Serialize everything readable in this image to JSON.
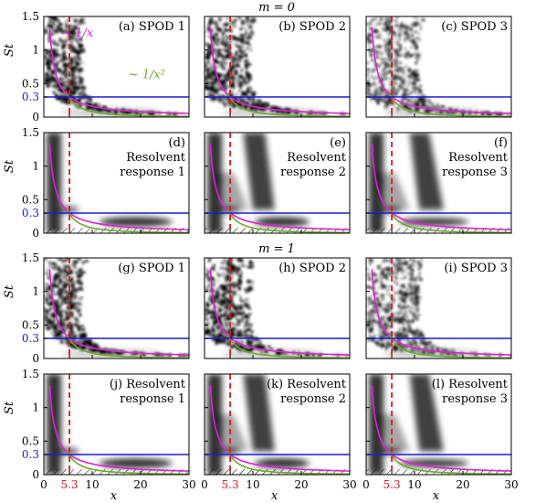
{
  "figure": {
    "section_labels": [
      "m = 0",
      "m = 1"
    ],
    "y_axis_label": "St",
    "x_axis_label": "x",
    "colors": {
      "inverse": "#e020d8",
      "inverse_sq": "#6aaa2a",
      "threshold": "#1a1adc",
      "x_marker": "#e01818",
      "frame": "#000000"
    },
    "annotations": {
      "inverse_text": "~ 1/x",
      "inverse_sq_text": "~ 1/x²"
    }
  },
  "chart_data": [
    {
      "type": "heatmap",
      "label": "(a) SPOD 1",
      "label_lines": [
        "(a) SPOD 1"
      ],
      "xlabel": "",
      "ylabel": "St",
      "xlim": [
        0,
        30
      ],
      "ylim": [
        0,
        1.5
      ],
      "x_ticks": [],
      "y_ticks": [
        "0",
        "0.3",
        "0.5",
        "1",
        "1.5"
      ],
      "threshold_st": 0.3,
      "marker_x": 5.3,
      "hatch": false,
      "annotations": [
        "~ 1/x",
        "~ 1/x²"
      ]
    },
    {
      "type": "heatmap",
      "label": "(b) SPOD 2",
      "label_lines": [
        "(b) SPOD 2"
      ],
      "xlabel": "",
      "ylabel": "",
      "xlim": [
        0,
        30
      ],
      "ylim": [
        0,
        1.5
      ],
      "x_ticks": [],
      "y_ticks": [],
      "threshold_st": 0.3,
      "marker_x": 5.3,
      "hatch": false
    },
    {
      "type": "heatmap",
      "label": "(c) SPOD 3",
      "label_lines": [
        "(c) SPOD 3"
      ],
      "xlabel": "",
      "ylabel": "",
      "xlim": [
        0,
        30
      ],
      "ylim": [
        0,
        1.5
      ],
      "x_ticks": [],
      "y_ticks": [],
      "threshold_st": 0.3,
      "marker_x": 5.3,
      "hatch": false
    },
    {
      "type": "heatmap",
      "label": "(d) Resolvent response 1",
      "label_lines": [
        "(d)",
        "Resolvent",
        "response 1"
      ],
      "xlabel": "",
      "ylabel": "St",
      "xlim": [
        0,
        30
      ],
      "ylim": [
        0,
        1.5
      ],
      "x_ticks": [],
      "y_ticks": [
        "0",
        "0.3",
        "0.5",
        "1",
        "1.5"
      ],
      "threshold_st": 0.3,
      "marker_x": 5.3,
      "hatch": true
    },
    {
      "type": "heatmap",
      "label": "(e) Resolvent response 2",
      "label_lines": [
        "(e)",
        "Resolvent",
        "response 2"
      ],
      "xlabel": "",
      "ylabel": "",
      "xlim": [
        0,
        30
      ],
      "ylim": [
        0,
        1.5
      ],
      "x_ticks": [],
      "y_ticks": [],
      "threshold_st": 0.3,
      "marker_x": 5.3,
      "hatch": true
    },
    {
      "type": "heatmap",
      "label": "(f) Resolvent response 3",
      "label_lines": [
        "(f)",
        "Resolvent",
        "response 3"
      ],
      "xlabel": "",
      "ylabel": "",
      "xlim": [
        0,
        30
      ],
      "ylim": [
        0,
        1.5
      ],
      "x_ticks": [],
      "y_ticks": [],
      "threshold_st": 0.3,
      "marker_x": 5.3,
      "hatch": true
    },
    {
      "type": "heatmap",
      "label": "(g) SPOD 1",
      "label_lines": [
        "(g) SPOD 1"
      ],
      "xlabel": "",
      "ylabel": "St",
      "xlim": [
        0,
        30
      ],
      "ylim": [
        0,
        1.5
      ],
      "x_ticks": [],
      "y_ticks": [
        "0",
        "0.3",
        "0.5",
        "1",
        "1.5"
      ],
      "threshold_st": 0.3,
      "marker_x": 5.3,
      "hatch": false
    },
    {
      "type": "heatmap",
      "label": "(h) SPOD 2",
      "label_lines": [
        "(h) SPOD 2"
      ],
      "xlabel": "",
      "ylabel": "",
      "xlim": [
        0,
        30
      ],
      "ylim": [
        0,
        1.5
      ],
      "x_ticks": [],
      "y_ticks": [],
      "threshold_st": 0.3,
      "marker_x": 5.3,
      "hatch": false
    },
    {
      "type": "heatmap",
      "label": "(i) SPOD 3",
      "label_lines": [
        "(i) SPOD 3"
      ],
      "xlabel": "",
      "ylabel": "",
      "xlim": [
        0,
        30
      ],
      "ylim": [
        0,
        1.5
      ],
      "x_ticks": [],
      "y_ticks": [],
      "threshold_st": 0.3,
      "marker_x": 5.3,
      "hatch": false
    },
    {
      "type": "heatmap",
      "label": "(j) Resolvent response 1",
      "label_lines": [
        "(j) Resolvent",
        "response 1"
      ],
      "xlabel": "x",
      "ylabel": "St",
      "xlim": [
        0,
        30
      ],
      "ylim": [
        0,
        1.5
      ],
      "x_ticks": [
        "0",
        "5.3",
        "10",
        "20",
        "30"
      ],
      "y_ticks": [
        "0",
        "0.3",
        "0.5",
        "1",
        "1.5"
      ],
      "threshold_st": 0.3,
      "marker_x": 5.3,
      "hatch": true
    },
    {
      "type": "heatmap",
      "label": "(k) Resolvent response 2",
      "label_lines": [
        "(k) Resolvent",
        "response 2"
      ],
      "xlabel": "x",
      "ylabel": "",
      "xlim": [
        0,
        30
      ],
      "ylim": [
        0,
        1.5
      ],
      "x_ticks": [
        "0",
        "5.3",
        "10",
        "20",
        "30"
      ],
      "y_ticks": [],
      "threshold_st": 0.3,
      "marker_x": 5.3,
      "hatch": true
    },
    {
      "type": "heatmap",
      "label": "(l) Resolvent response 3",
      "label_lines": [
        "(l) Resolvent",
        "response 3"
      ],
      "xlabel": "x",
      "ylabel": "",
      "xlim": [
        0,
        30
      ],
      "ylim": [
        0,
        1.5
      ],
      "x_ticks": [
        "0",
        "5.3",
        "10",
        "20",
        "30"
      ],
      "y_ticks": [],
      "threshold_st": 0.3,
      "marker_x": 5.3,
      "hatch": true
    }
  ]
}
